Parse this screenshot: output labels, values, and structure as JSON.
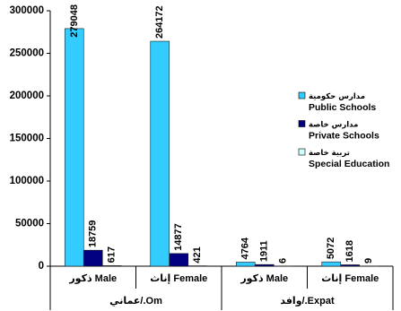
{
  "chart_data": {
    "type": "bar",
    "categories": [
      "ذكور Male",
      "إناث Female",
      "ذكور Male",
      "إناث Female"
    ],
    "groups": [
      {
        "label": "Om./عماني",
        "categories": [
          0,
          1
        ]
      },
      {
        "label": "Expat./وافد",
        "categories": [
          2,
          3
        ]
      }
    ],
    "series": [
      {
        "name": "Public Schools",
        "name_ar": "مدارس حكومية",
        "color": "#33CCFF",
        "values": [
          279048,
          264172,
          4764,
          5072
        ]
      },
      {
        "name": "Private Schools",
        "name_ar": "مدارس خاصة",
        "color": "#000080",
        "values": [
          18759,
          14877,
          1911,
          1618
        ]
      },
      {
        "name": "Special Education",
        "name_ar": "تربية خاصة",
        "color": "#CCFFFF",
        "values": [
          617,
          421,
          6,
          9
        ]
      }
    ],
    "ylim": [
      0,
      300000
    ],
    "yticks": [
      0,
      50000,
      100000,
      150000,
      200000,
      250000,
      300000
    ],
    "data_labels": true,
    "grid": false,
    "legend_position": "right"
  }
}
